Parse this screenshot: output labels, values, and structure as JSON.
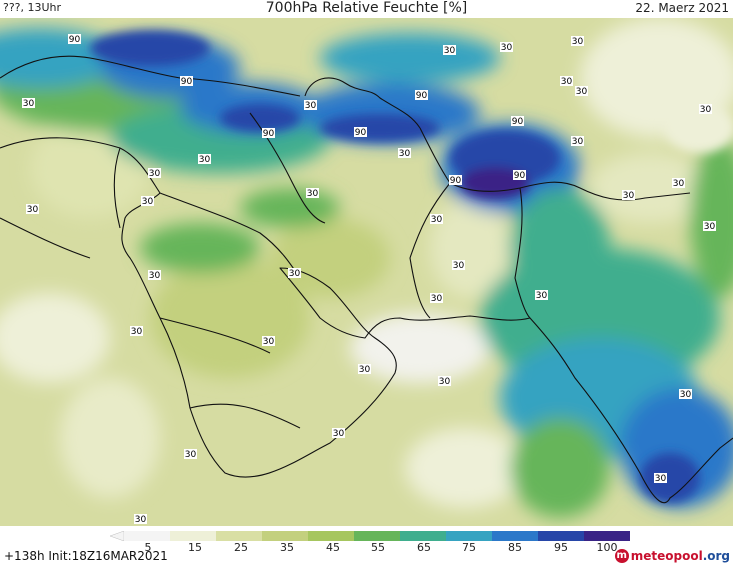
{
  "header": {
    "left": "???, 13Uhr",
    "title": "700hPa Relative Feuchte [%]",
    "right": "22. Maerz 2021"
  },
  "map": {
    "contour_labels": [
      "90",
      "90",
      "90",
      "90",
      "90",
      "90",
      "90",
      "90",
      "30",
      "30",
      "30",
      "30",
      "30",
      "30",
      "30",
      "30",
      "30",
      "30",
      "30",
      "30",
      "30",
      "30",
      "30",
      "30",
      "30",
      "30",
      "30",
      "30",
      "30",
      "30",
      "30",
      "30",
      "30",
      "30",
      "30",
      "30",
      "30",
      "30",
      "30",
      "30",
      "30"
    ]
  },
  "legend": {
    "ticks": [
      "5",
      "15",
      "25",
      "35",
      "45",
      "55",
      "65",
      "75",
      "85",
      "95",
      "100"
    ],
    "colors": [
      "#f4f4f4",
      "#eef0d8",
      "#d9dfa4",
      "#c3d07e",
      "#a6c65f",
      "#66b55a",
      "#3fae8e",
      "#36a3c1",
      "#2c78c9",
      "#2746a8",
      "#3a2486"
    ]
  },
  "footer": {
    "run_info": "+138h  Init:18Z16MAR2021"
  },
  "logo": {
    "name": "meteopool",
    "domain": ".org",
    "icon": "meteopool-logo-icon"
  }
}
